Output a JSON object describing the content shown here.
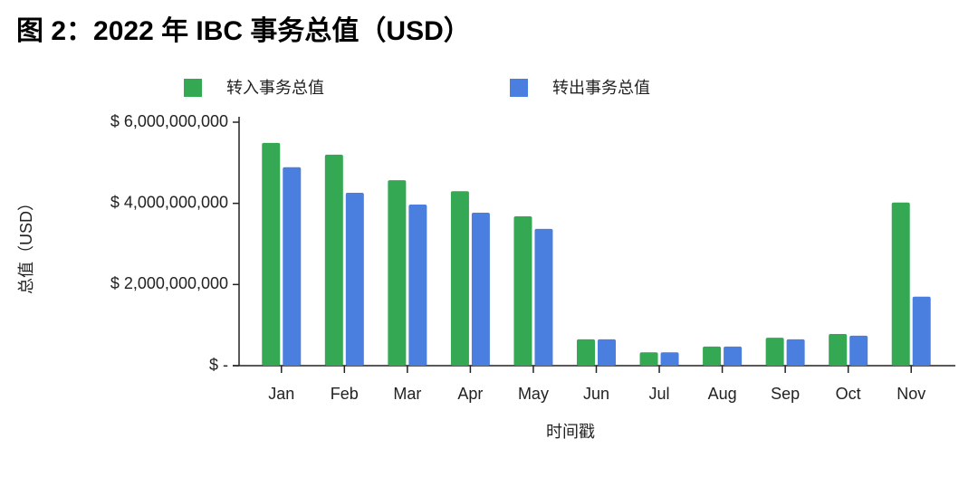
{
  "chart_data": {
    "type": "bar",
    "title": "图 2：2022 年 IBC 事务总值（USD）",
    "x_label": "时间戳",
    "y_label": "总值（USD）",
    "categories": [
      "Jan",
      "Feb",
      "Mar",
      "Apr",
      "May",
      "Jun",
      "Jul",
      "Aug",
      "Sep",
      "Oct",
      "Nov"
    ],
    "series": [
      {
        "name": "转入事务总值",
        "color": "#34a853",
        "values": [
          5490000000,
          5200000000,
          4570000000,
          4300000000,
          3680000000,
          650000000,
          330000000,
          470000000,
          690000000,
          780000000,
          4020000000
        ]
      },
      {
        "name": "转出事务总值",
        "color": "#4a7fdf",
        "values": [
          4890000000,
          4260000000,
          3970000000,
          3770000000,
          3370000000,
          650000000,
          330000000,
          470000000,
          650000000,
          740000000,
          1700000000
        ]
      }
    ],
    "ylim": [
      0,
      6000000000
    ],
    "yticks": [
      {
        "value": 0,
        "label": "$ -"
      },
      {
        "value": 2000000000,
        "label": "$ 2,000,000,000"
      },
      {
        "value": 4000000000,
        "label": "$ 4,000,000,000"
      },
      {
        "value": 6000000000,
        "label": "$ 6,000,000,000"
      }
    ],
    "grid": false,
    "legend": "top"
  }
}
